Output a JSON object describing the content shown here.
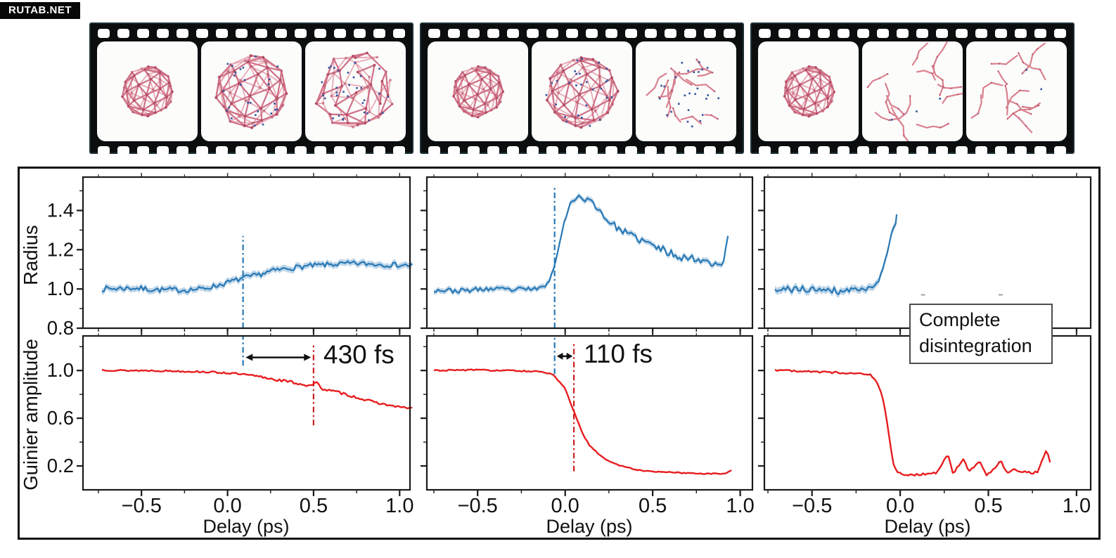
{
  "watermark": {
    "text": "RUTAB.NET"
  },
  "filmstrips": [
    {
      "frames": [
        {
          "molecule": "intact-fullerene",
          "dots": 0
        },
        {
          "molecule": "expanded-cage",
          "dots": 26
        },
        {
          "molecule": "ruptured-cage",
          "dots": 32
        }
      ]
    },
    {
      "frames": [
        {
          "molecule": "intact-fullerene",
          "dots": 0
        },
        {
          "molecule": "expanded-cage",
          "dots": 28
        },
        {
          "molecule": "fragment-cloud",
          "dots": 26
        }
      ]
    },
    {
      "frames": [
        {
          "molecule": "intact-fullerene",
          "dots": 0
        },
        {
          "molecule": "fragment-ring",
          "dots": 3
        },
        {
          "molecule": "fragment-scatter",
          "dots": 2
        }
      ]
    }
  ],
  "molecule_style": {
    "bond_back": "#e8abb7",
    "bond_front": "#cf7187",
    "atom": "#b04a60",
    "electron": "#33539e",
    "fragment": "#d9818f"
  },
  "chart_data": {
    "type": "line",
    "x": {
      "label": "Delay (ps)",
      "tick_values": [
        -0.5,
        0.0,
        0.5,
        1.0
      ],
      "tick_labels": [
        "−0.5",
        "0.0",
        "0.5",
        "1.0"
      ],
      "minor_ticks": [
        -0.75,
        -0.25,
        0.25,
        0.75
      ],
      "grid": false
    },
    "rows": [
      {
        "ylabel": "Radius",
        "ylim": [
          0.8,
          1.57
        ],
        "tick_values": [
          0.8,
          1.0,
          1.2,
          1.4
        ],
        "tick_labels": [
          "0.8",
          "1.0",
          "1.2",
          "1.4"
        ],
        "minor_ticks": [
          0.9,
          1.1,
          1.3,
          1.5
        ]
      },
      {
        "ylabel": "Guinier amplitude",
        "ylim": [
          0.0,
          1.29
        ],
        "tick_values": [
          0.2,
          0.6,
          1.0
        ],
        "tick_labels": [
          "0.2",
          "0.6",
          "1.0"
        ],
        "minor_ticks": [
          0.4,
          0.8,
          1.2
        ]
      }
    ],
    "colors": {
      "radius_line": "#2878b5",
      "radius_band": "rgba(40,120,181,0.30)",
      "guinier_line": "#e71d1f",
      "vline_blue": "#2878b5",
      "vline_red": "#cc2020",
      "arrow": "#111111"
    },
    "columns": [
      {
        "xlim": [
          -0.84,
          1.06
        ],
        "radius": {
          "band": 0.016,
          "seed": 7,
          "step": 0.012,
          "keypoints": [
            [
              -0.73,
              1.0,
              0.014
            ],
            [
              -0.55,
              1.005,
              0.014
            ],
            [
              -0.4,
              0.995,
              0.014
            ],
            [
              -0.25,
              0.995,
              0.014
            ],
            [
              -0.15,
              1.0,
              0.013
            ],
            [
              -0.05,
              1.02,
              0.013
            ],
            [
              0.05,
              1.045,
              0.013
            ],
            [
              0.09,
              1.055,
              0.013
            ],
            [
              0.15,
              1.065,
              0.013
            ],
            [
              0.25,
              1.09,
              0.013
            ],
            [
              0.35,
              1.105,
              0.013
            ],
            [
              0.45,
              1.115,
              0.013
            ],
            [
              0.6,
              1.125,
              0.013
            ],
            [
              0.75,
              1.13,
              0.013
            ],
            [
              0.9,
              1.125,
              0.013
            ],
            [
              1.07,
              1.12,
              0.013
            ]
          ]
        },
        "guinier": {
          "seed": 13,
          "step": 0.012,
          "keypoints": [
            [
              -0.73,
              1.005,
              0.007
            ],
            [
              -0.6,
              1.0,
              0.007
            ],
            [
              -0.45,
              1.0,
              0.007
            ],
            [
              -0.3,
              0.995,
              0.007
            ],
            [
              -0.15,
              0.99,
              0.007
            ],
            [
              0.0,
              0.98,
              0.008
            ],
            [
              0.1,
              0.965,
              0.009
            ],
            [
              0.2,
              0.945,
              0.011
            ],
            [
              0.3,
              0.92,
              0.012
            ],
            [
              0.4,
              0.895,
              0.012
            ],
            [
              0.48,
              0.87,
              0.013
            ],
            [
              0.52,
              0.905,
              0.0
            ],
            [
              0.55,
              0.845,
              0.009
            ],
            [
              0.65,
              0.815,
              0.011
            ],
            [
              0.75,
              0.775,
              0.011
            ],
            [
              0.85,
              0.735,
              0.009
            ],
            [
              0.95,
              0.705,
              0.008
            ],
            [
              1.02,
              0.69,
              0.007
            ],
            [
              1.07,
              0.685,
              0.006
            ]
          ]
        },
        "vlines": [
          {
            "color": "vline_blue",
            "x": 0.09,
            "row": 0,
            "y1": 0.8,
            "y2": 1.27
          },
          {
            "color": "vline_blue",
            "x": 0.09,
            "row": 1,
            "y1": 1.04,
            "y2": 1.29
          },
          {
            "color": "vline_red",
            "x": 0.5,
            "row": 1,
            "y1": 0.54,
            "y2": 1.21
          }
        ],
        "annotation": {
          "text": "430 fs",
          "arrow": {
            "x1": 0.105,
            "x2": 0.485,
            "y": 1.11
          }
        }
      },
      {
        "xlim": [
          -0.79,
          1.07
        ],
        "radius": {
          "band": 0.014,
          "seed": 23,
          "step": 0.012,
          "keypoints": [
            [
              -0.75,
              0.995,
              0.012
            ],
            [
              -0.6,
              0.99,
              0.012
            ],
            [
              -0.45,
              1.0,
              0.012
            ],
            [
              -0.3,
              0.995,
              0.012
            ],
            [
              -0.2,
              1.0,
              0.011
            ],
            [
              -0.13,
              1.005,
              0.009
            ],
            [
              -0.09,
              1.04,
              0.008
            ],
            [
              -0.06,
              1.12,
              0.008
            ],
            [
              -0.03,
              1.25,
              0.009
            ],
            [
              0.0,
              1.36,
              0.01
            ],
            [
              0.03,
              1.43,
              0.011
            ],
            [
              0.07,
              1.475,
              0.012
            ],
            [
              0.1,
              1.46,
              0.013
            ],
            [
              0.14,
              1.45,
              0.014
            ],
            [
              0.18,
              1.42,
              0.015
            ],
            [
              0.23,
              1.36,
              0.016
            ],
            [
              0.3,
              1.31,
              0.017
            ],
            [
              0.38,
              1.27,
              0.018
            ],
            [
              0.48,
              1.23,
              0.019
            ],
            [
              0.58,
              1.19,
              0.02
            ],
            [
              0.68,
              1.16,
              0.02
            ],
            [
              0.78,
              1.15,
              0.02
            ],
            [
              0.86,
              1.13,
              0.018
            ],
            [
              0.9,
              1.12,
              0.012
            ],
            [
              0.93,
              1.27,
              0.0
            ]
          ]
        },
        "guinier": {
          "seed": 31,
          "step": 0.012,
          "keypoints": [
            [
              -0.75,
              1.0,
              0.006
            ],
            [
              -0.55,
              1.005,
              0.006
            ],
            [
              -0.35,
              1.0,
              0.006
            ],
            [
              -0.2,
              0.995,
              0.006
            ],
            [
              -0.12,
              0.985,
              0.005
            ],
            [
              -0.07,
              0.965,
              0.004
            ],
            [
              -0.03,
              0.9,
              0.004
            ],
            [
              0.0,
              0.85,
              0.003
            ],
            [
              0.03,
              0.73,
              0.003
            ],
            [
              0.06,
              0.62,
              0.003
            ],
            [
              0.1,
              0.47,
              0.003
            ],
            [
              0.14,
              0.37,
              0.004
            ],
            [
              0.19,
              0.3,
              0.005
            ],
            [
              0.25,
              0.24,
              0.005
            ],
            [
              0.32,
              0.2,
              0.005
            ],
            [
              0.42,
              0.165,
              0.005
            ],
            [
              0.55,
              0.15,
              0.005
            ],
            [
              0.7,
              0.14,
              0.005
            ],
            [
              0.85,
              0.135,
              0.005
            ],
            [
              0.92,
              0.14,
              0.004
            ],
            [
              0.95,
              0.165,
              0.0
            ]
          ]
        },
        "vlines": [
          {
            "color": "vline_blue",
            "x": -0.06,
            "row": 0,
            "y1": 0.8,
            "y2": 1.52
          },
          {
            "color": "vline_blue",
            "x": -0.06,
            "row": 1,
            "y1": 0.97,
            "y2": 1.29
          },
          {
            "color": "vline_red",
            "x": 0.05,
            "row": 1,
            "y1": 0.155,
            "y2": 1.23
          }
        ],
        "annotation": {
          "text": "110 fs",
          "arrow": {
            "x1": -0.048,
            "x2": 0.043,
            "y": 1.12
          }
        }
      },
      {
        "xlim": [
          -0.77,
          1.08
        ],
        "radius": {
          "band": 0.018,
          "seed": 41,
          "step": 0.012,
          "keypoints": [
            [
              -0.71,
              0.985,
              0.018
            ],
            [
              -0.62,
              1.0,
              0.02
            ],
            [
              -0.52,
              0.995,
              0.02
            ],
            [
              -0.42,
              1.005,
              0.02
            ],
            [
              -0.33,
              0.985,
              0.018
            ],
            [
              -0.25,
              1.005,
              0.016
            ],
            [
              -0.2,
              0.995,
              0.012
            ],
            [
              -0.16,
              1.01,
              0.01
            ],
            [
              -0.12,
              1.05,
              0.009
            ],
            [
              -0.09,
              1.13,
              0.009
            ],
            [
              -0.06,
              1.24,
              0.009
            ],
            [
              -0.04,
              1.31,
              0.008
            ],
            [
              -0.03,
              1.3,
              0.006
            ],
            [
              -0.02,
              1.38,
              0.0
            ]
          ],
          "extra_marks": [
            [
              0.13,
              0.97
            ],
            [
              0.57,
              0.97
            ]
          ]
        },
        "guinier": {
          "seed": 47,
          "step": 0.012,
          "keypoints": [
            [
              -0.71,
              1.005,
              0.009
            ],
            [
              -0.6,
              1.0,
              0.009
            ],
            [
              -0.5,
              0.99,
              0.009
            ],
            [
              -0.4,
              0.985,
              0.008
            ],
            [
              -0.3,
              0.98,
              0.007
            ],
            [
              -0.22,
              0.975,
              0.006
            ],
            [
              -0.17,
              0.965,
              0.005
            ],
            [
              -0.13,
              0.9,
              0.004
            ],
            [
              -0.1,
              0.78,
              0.003
            ],
            [
              -0.08,
              0.62,
              0.003
            ],
            [
              -0.06,
              0.42,
              0.003
            ],
            [
              -0.04,
              0.22,
              0.004
            ],
            [
              -0.02,
              0.15,
              0.005
            ],
            [
              0.02,
              0.13,
              0.007
            ],
            [
              0.08,
              0.125,
              0.009
            ],
            [
              0.15,
              0.13,
              0.011
            ],
            [
              0.21,
              0.15,
              0.012
            ],
            [
              0.27,
              0.3,
              0.0
            ],
            [
              0.3,
              0.14,
              0.011
            ],
            [
              0.36,
              0.26,
              0.0
            ],
            [
              0.39,
              0.15,
              0.011
            ],
            [
              0.45,
              0.24,
              0.0
            ],
            [
              0.49,
              0.13,
              0.011
            ],
            [
              0.53,
              0.17,
              0.011
            ],
            [
              0.57,
              0.25,
              0.0
            ],
            [
              0.6,
              0.15,
              0.012
            ],
            [
              0.66,
              0.17,
              0.012
            ],
            [
              0.72,
              0.14,
              0.011
            ],
            [
              0.78,
              0.15,
              0.01
            ],
            [
              0.83,
              0.34,
              0.0
            ],
            [
              0.85,
              0.23,
              0.0
            ]
          ]
        },
        "vlines": [],
        "label_box": {
          "line1": "Complete",
          "line2": "disintegration"
        }
      }
    ]
  }
}
